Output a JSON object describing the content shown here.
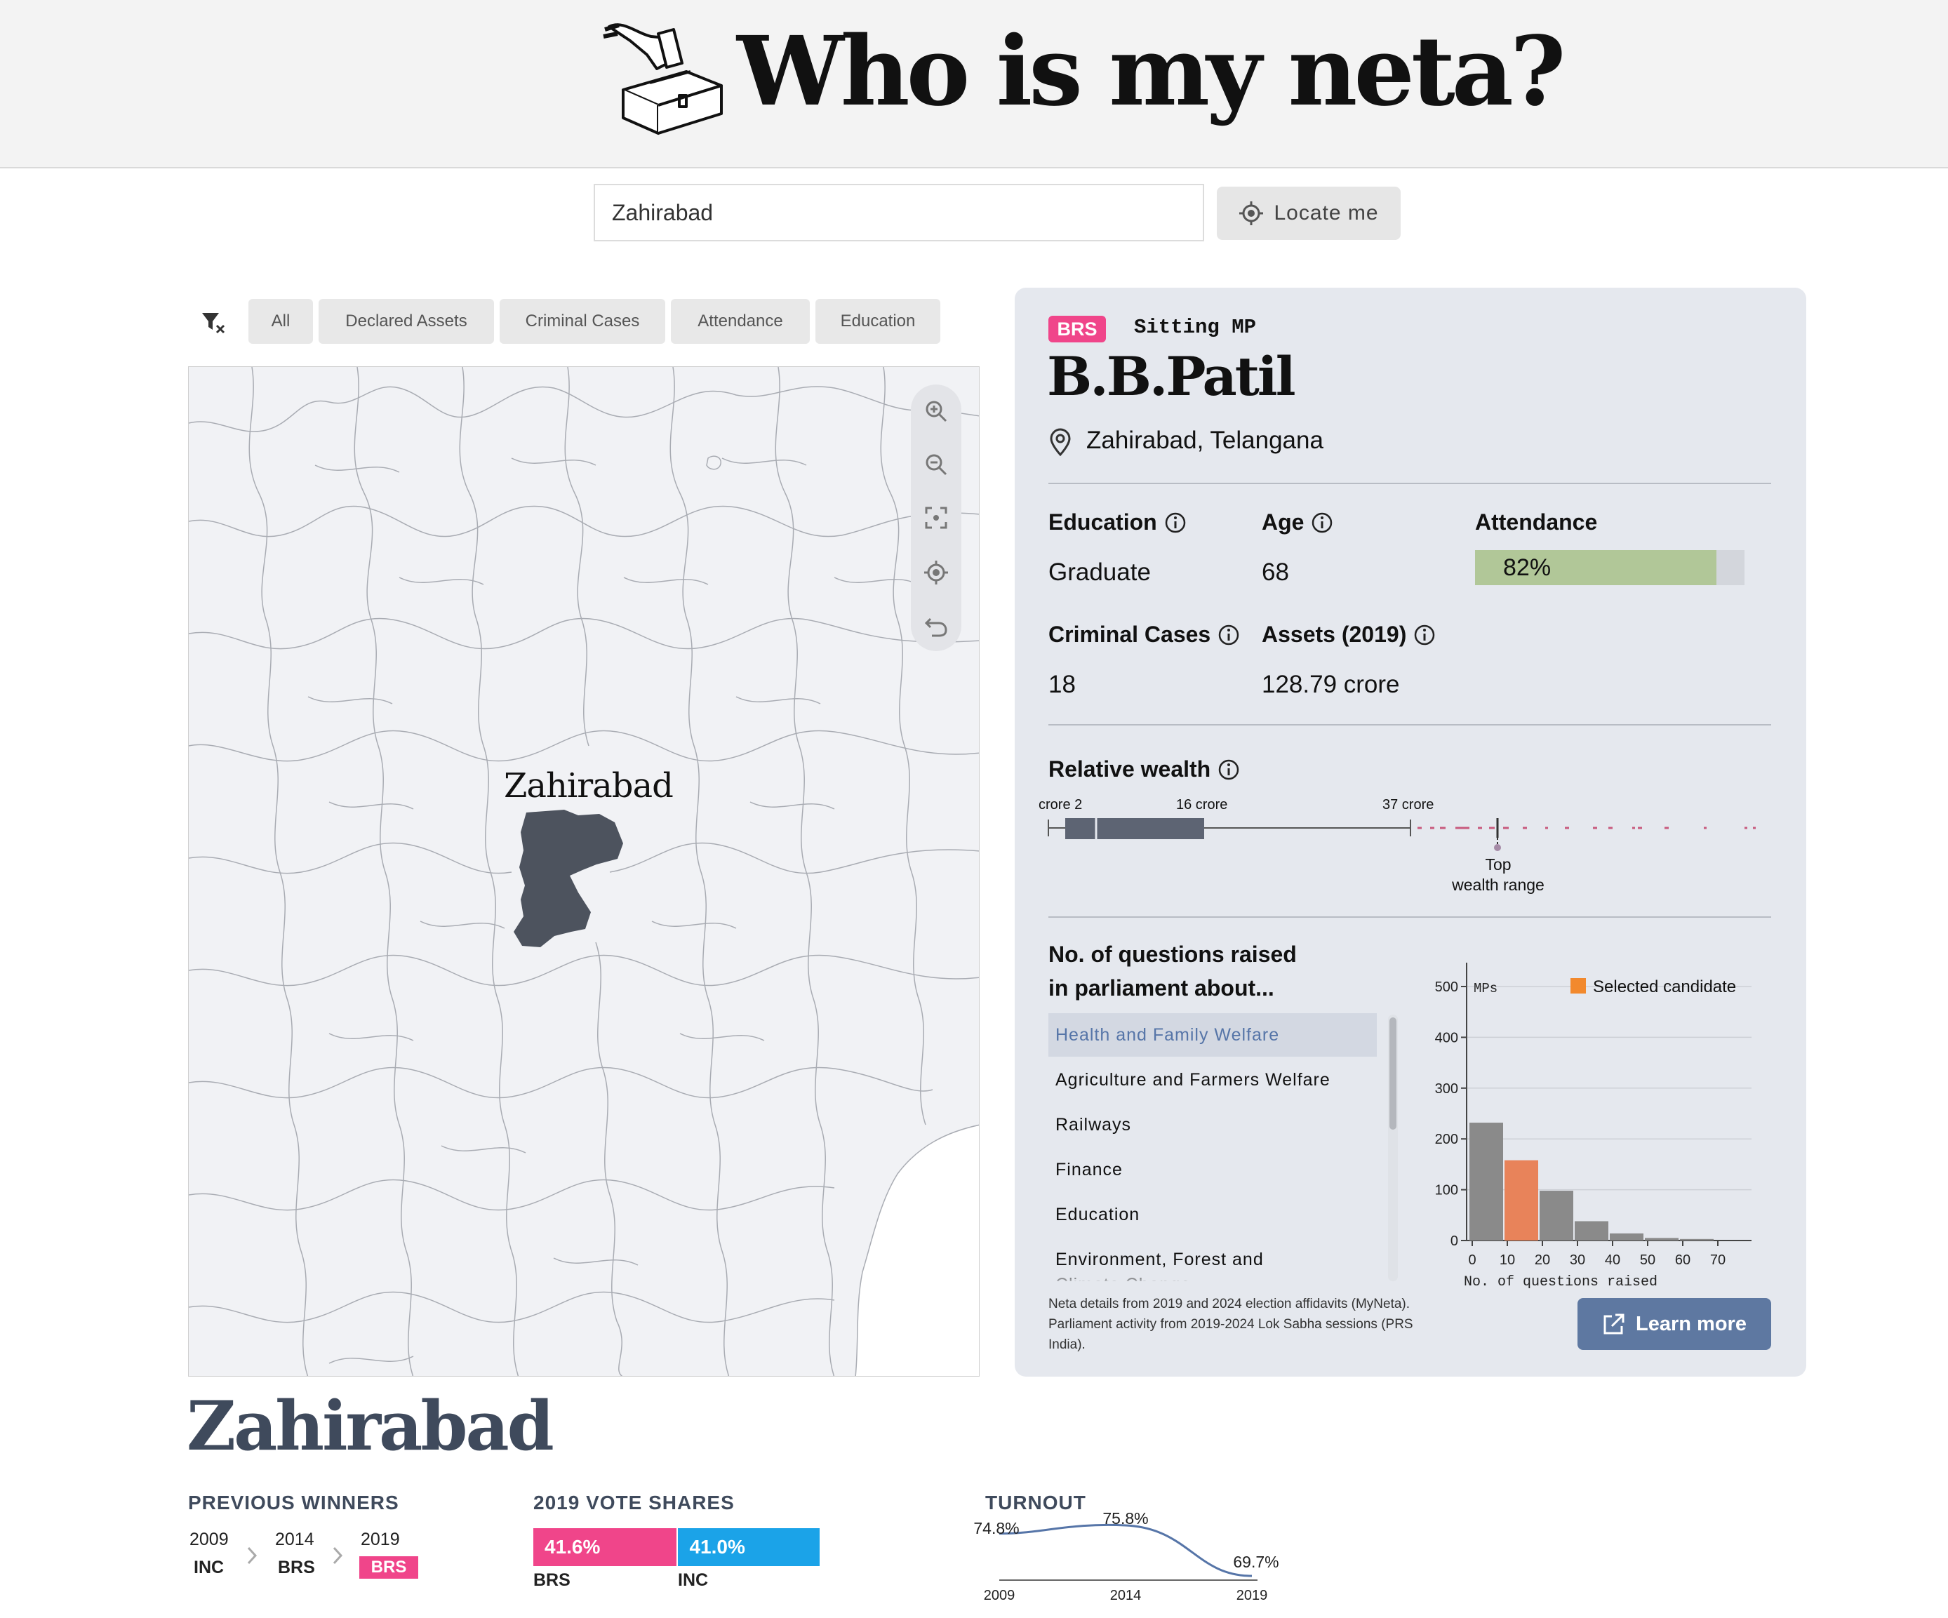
{
  "app": {
    "title": "Who is my neta?",
    "logo_icon": "ballot-box-icon"
  },
  "search": {
    "value": "Zahirabad",
    "locate_label": "Locate me"
  },
  "filters": {
    "clear_icon": "filter-clear-icon",
    "items": [
      "All",
      "Declared Assets",
      "Criminal Cases",
      "Attendance",
      "Education"
    ]
  },
  "map": {
    "highlight_label": "Zahirabad",
    "controls": [
      "zoom-in-icon",
      "zoom-out-icon",
      "fit-bounds-icon",
      "locate-icon",
      "reset-icon"
    ]
  },
  "candidate": {
    "party": "BRS",
    "party_color": "#f0458a",
    "status": "Sitting MP",
    "name": "B.B.Patil",
    "location": "Zahirabad, Telangana",
    "education_label": "Education",
    "education": "Graduate",
    "age_label": "Age",
    "age": "68",
    "attendance_label": "Attendance",
    "attendance": "82%",
    "attendance_fraction": 0.82,
    "criminal_label": "Criminal Cases",
    "criminal_cases": "18",
    "assets_label": "Assets (2019)",
    "assets": "128.79 crore"
  },
  "wealth": {
    "title": "Relative wealth",
    "ticks": [
      "2 crore",
      "16 crore",
      "37 crore"
    ],
    "top_label_1": "Top",
    "top_label_2": "wealth range"
  },
  "questions": {
    "title_1": "No. of questions raised",
    "title_2": "in parliament about...",
    "topics": [
      "Health and Family Welfare",
      "Agriculture and Farmers Welfare",
      "Railways",
      "Finance",
      "Education",
      "Environment, Forest and Climate Change"
    ],
    "selected": 0
  },
  "chart_data": {
    "type": "bar",
    "ylabel": "MPs",
    "xlabel": "No. of questions raised",
    "legend": "Selected candidate",
    "legend_position": "top-right",
    "x_ticks": [
      "0",
      "10",
      "20",
      "30",
      "40",
      "50",
      "60",
      "70"
    ],
    "y_ticks": [
      "0",
      "100",
      "200",
      "300",
      "400",
      "500"
    ],
    "ylim": [
      0,
      500
    ],
    "bins": [
      0,
      10,
      20,
      30,
      40,
      50,
      60,
      70
    ],
    "values": [
      232,
      158,
      98,
      38,
      14,
      5,
      3,
      0
    ],
    "highlight_bin": 1,
    "bar_color": "#8a8a8a",
    "highlight_color": "#e8835a",
    "grid": true
  },
  "footer": {
    "source_line_1": "Neta details from 2019 and 2024 election affidavits (MyNeta).",
    "source_line_2": "Parliament activity from 2019-2024 Lok Sabha sessions (PRS",
    "source_line_3": "India).",
    "learn_more": "Learn more"
  },
  "constituency": {
    "name": "Zahirabad",
    "previous_winners_title": "PREVIOUS WINNERS",
    "winners": [
      {
        "year": "2009",
        "party": "INC"
      },
      {
        "year": "2014",
        "party": "BRS"
      },
      {
        "year": "2019",
        "party": "BRS"
      }
    ],
    "vote_shares_title": "2019 VOTE SHARES",
    "vote_shares": [
      {
        "party": "BRS",
        "share": "41.6%",
        "value": 41.6,
        "color": "#f0458a"
      },
      {
        "party": "INC",
        "share": "41.0%",
        "value": 41.0,
        "color": "#1ba3e8"
      }
    ],
    "turnout_title": "TURNOUT",
    "turnout": {
      "years": [
        "2009",
        "2014",
        "2019"
      ],
      "values": [
        74.8,
        75.8,
        69.7
      ],
      "labels": [
        "74.8%",
        "75.8%",
        "69.7%"
      ]
    }
  }
}
